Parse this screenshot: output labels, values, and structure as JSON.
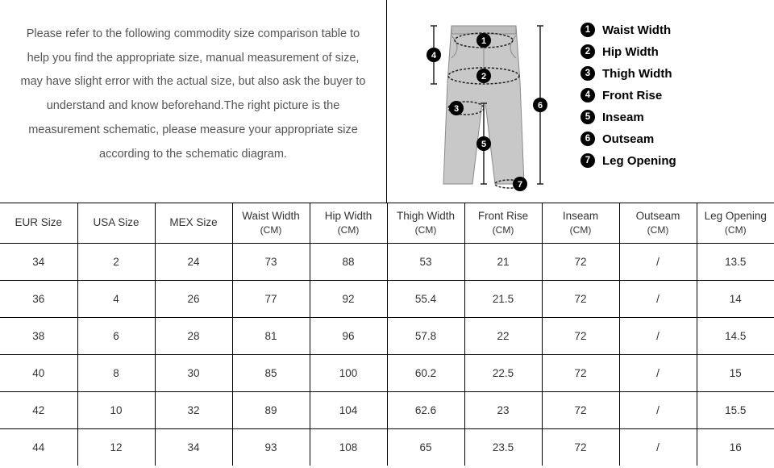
{
  "intro_text": "Please refer to the following commodity size comparison table to help you find the appropriate size, manual measurement of size, may have slight error with the actual size, but also ask the buyer to understand and know beforehand.The right picture is the measurement schematic, please measure your appropriate size according to the schematic diagram.",
  "legend": [
    {
      "num": "1",
      "label": "Waist Width"
    },
    {
      "num": "2",
      "label": "Hip Width"
    },
    {
      "num": "3",
      "label": "Thigh Width"
    },
    {
      "num": "4",
      "label": "Front Rise"
    },
    {
      "num": "5",
      "label": "Inseam"
    },
    {
      "num": "6",
      "label": "Outseam"
    },
    {
      "num": "7",
      "label": "Leg Opening"
    }
  ],
  "columns": [
    {
      "main": "EUR Size",
      "sub": ""
    },
    {
      "main": "USA Size",
      "sub": ""
    },
    {
      "main": "MEX Size",
      "sub": ""
    },
    {
      "main": "Waist Width",
      "sub": "(CM)"
    },
    {
      "main": "Hip Width",
      "sub": "(CM)"
    },
    {
      "main": "Thigh Width",
      "sub": "(CM)"
    },
    {
      "main": "Front Rise",
      "sub": "(CM)"
    },
    {
      "main": "Inseam",
      "sub": "(CM)"
    },
    {
      "main": "Outseam",
      "sub": "(CM)"
    },
    {
      "main": "Leg Opening",
      "sub": "(CM)"
    }
  ],
  "rows": [
    [
      "34",
      "2",
      "24",
      "73",
      "88",
      "53",
      "21",
      "72",
      "/",
      "13.5"
    ],
    [
      "36",
      "4",
      "26",
      "77",
      "92",
      "55.4",
      "21.5",
      "72",
      "/",
      "14"
    ],
    [
      "38",
      "6",
      "28",
      "81",
      "96",
      "57.8",
      "22",
      "72",
      "/",
      "14.5"
    ],
    [
      "40",
      "8",
      "30",
      "85",
      "100",
      "60.2",
      "22.5",
      "72",
      "/",
      "15"
    ],
    [
      "42",
      "10",
      "32",
      "89",
      "104",
      "62.6",
      "23",
      "72",
      "/",
      "15.5"
    ],
    [
      "44",
      "12",
      "34",
      "93",
      "108",
      "65",
      "23.5",
      "72",
      "/",
      "16"
    ]
  ],
  "style": {
    "pants_fill": "#c8c8c8",
    "pants_stroke": "#8a8a8a",
    "dim_line": "#222222",
    "marker_bg": "#000000",
    "marker_fg": "#ffffff",
    "bg": "#ffffff",
    "page_bg": "#f0f0f0",
    "border": "#000000",
    "text": "#333333",
    "intro_text_color": "#555555"
  }
}
